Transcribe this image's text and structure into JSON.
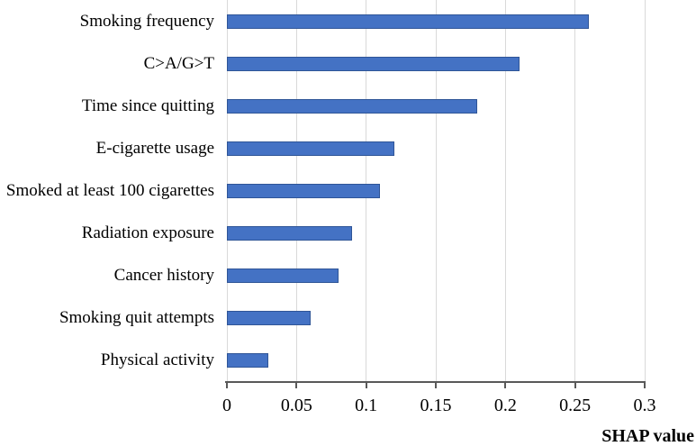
{
  "chart_data": {
    "type": "bar",
    "orientation": "horizontal",
    "title": "",
    "xlabel": "SHAP value",
    "ylabel": "",
    "categories": [
      "Smoking frequency",
      "C>A/G>T",
      "Time since quitting",
      "E-cigarette usage",
      "Smoked at least 100 cigarettes",
      "Radiation exposure",
      "Cancer history",
      "Smoking quit attempts",
      "Physical activity"
    ],
    "values": [
      0.26,
      0.21,
      0.18,
      0.12,
      0.11,
      0.09,
      0.08,
      0.06,
      0.03
    ],
    "xlim": [
      0,
      0.3
    ],
    "xticks": [
      0,
      0.05,
      0.1,
      0.15,
      0.2,
      0.25,
      0.3
    ],
    "xtick_labels": [
      "0",
      "0.05",
      "0.1",
      "0.15",
      "0.2",
      "0.25",
      "0.3"
    ],
    "grid": true,
    "legend": false,
    "colors": {
      "bar_fill": "#4472C4",
      "bar_border": "#2F5597",
      "gridline": "#D9D9D9",
      "axis_line": "#595959",
      "text": "#000000"
    }
  }
}
